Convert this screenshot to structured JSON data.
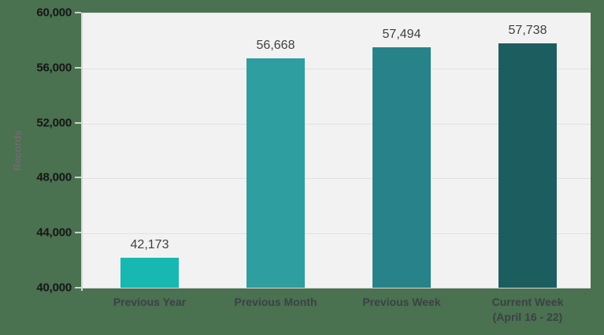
{
  "chart_data": {
    "type": "bar",
    "title": "",
    "xlabel": "",
    "ylabel": "Records",
    "categories": [
      "Previous Year",
      "Previous Month",
      "Previous Week",
      "Current Week\n(April 16 - 22)"
    ],
    "values": [
      42173,
      56668,
      57494,
      57738
    ],
    "value_labels": [
      "42,173",
      "56,668",
      "57,494",
      "57,738"
    ],
    "bar_colors": [
      "#16b8b1",
      "#2f9ea1",
      "#27828a",
      "#1c5e5f"
    ],
    "ylim": [
      40000,
      60000
    ],
    "ytick_interval": 4000,
    "ytick_labels": [
      "40,000",
      "44,000",
      "48,000",
      "52,000",
      "56,000",
      "60,000"
    ],
    "grid": "horizontal",
    "legend": "none",
    "colors": {
      "background": "#4a7150",
      "plot_background": "#f2f2f2",
      "gridline": "#e0e1e0",
      "axis_line": "#d6d8d6",
      "tick_mark": "#cdd3cd",
      "value_label_text": "#3f3f3f",
      "y_tick_text": "#161616",
      "x_label_text": "#3c4145",
      "y_axis_title_text": "#6d6d6d"
    }
  }
}
